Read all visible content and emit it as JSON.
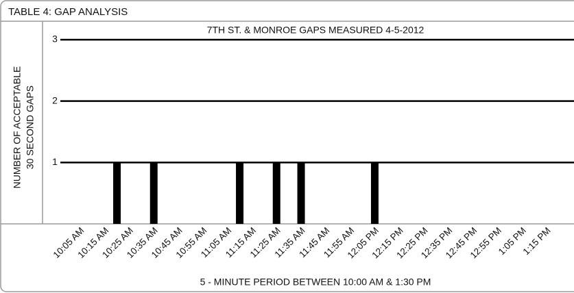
{
  "chart_data": {
    "type": "bar",
    "title": "TABLE 4: GAP ANALYSIS",
    "subtitle": "7TH ST. & MONROE GAPS MEASURED 4-5-2012",
    "y_label": [
      "NUMBER OF ACCEPTABLE",
      "30 SECOND GAPS"
    ],
    "x_label": "5 - MINUTE PERIOD BETWEEN 10:00 AM & 1:30 PM",
    "categories": [
      null,
      "10:05 AM",
      null,
      "10:15 AM",
      null,
      "10:25 AM",
      null,
      "10:35 AM",
      null,
      "10:45 AM",
      null,
      "10:55 AM",
      null,
      "11:05 AM",
      null,
      "11:15 AM",
      null,
      "11:25 AM",
      null,
      "11:35 AM",
      null,
      "11:45 AM",
      null,
      "11:55 AM",
      null,
      "12:05 PM",
      null,
      "12:15 PM",
      null,
      "12:25 PM",
      null,
      "12:35 PM",
      null,
      "12:45 PM",
      null,
      "12:55 PM",
      null,
      "1:05 PM",
      null,
      "1:15 PM",
      null
    ],
    "values": [
      0,
      0,
      0,
      0,
      1,
      0,
      0,
      1,
      0,
      0,
      0,
      0,
      0,
      0,
      1,
      0,
      0,
      1,
      0,
      1,
      0,
      0,
      0,
      0,
      0,
      1,
      0,
      0,
      0,
      0,
      0,
      0,
      0,
      0,
      0,
      0,
      0,
      0,
      0,
      0,
      0
    ],
    "color": "#000000",
    "ylim": [
      0,
      3
    ],
    "yticks": [
      1,
      2,
      3
    ],
    "grid": true
  }
}
